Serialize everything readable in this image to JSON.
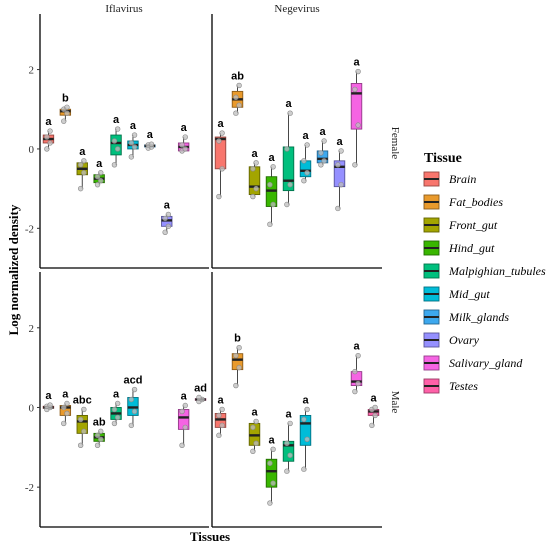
{
  "chart_data": {
    "type": "box",
    "xlabel": "Tissues",
    "ylabel": "Log normalized density",
    "ylim": [
      -3.0,
      3.4
    ],
    "yticks": [
      -2,
      0,
      2
    ],
    "columns": [
      "Iflavirus",
      "Negevirus"
    ],
    "rows": [
      "Female",
      "Male"
    ],
    "legend": {
      "title": "Tissue",
      "position": "right",
      "entries": [
        {
          "label": "Brain",
          "color": "#F8766D"
        },
        {
          "label": "Fat_bodies",
          "color": "#E99A2C"
        },
        {
          "label": "Front_gut",
          "color": "#A3A500"
        },
        {
          "label": "Hind_gut",
          "color": "#39B600"
        },
        {
          "label": "Malpighian_tubules",
          "color": "#00BF7D"
        },
        {
          "label": "Mid_gut",
          "color": "#00BCD8"
        },
        {
          "label": "Milk_glands",
          "color": "#3DA8EE"
        },
        {
          "label": "Ovary",
          "color": "#9590FF"
        },
        {
          "label": "Salivary_gland",
          "color": "#F564E3"
        },
        {
          "label": "Testes",
          "color": "#FF61A8"
        }
      ]
    },
    "panels": [
      {
        "column": "Iflavirus",
        "row": "Female",
        "boxes": [
          {
            "slot": 1,
            "tissue": "Brain",
            "min": 0.0,
            "q1": 0.15,
            "median": 0.25,
            "q3": 0.35,
            "max": 0.45,
            "points": [
              0.0,
              0.15,
              0.3,
              0.45
            ],
            "label": "a"
          },
          {
            "slot": 2,
            "tissue": "Fat_bodies",
            "min": 0.7,
            "q1": 0.85,
            "median": 0.95,
            "q3": 1.0,
            "max": 1.05,
            "points": [
              0.7,
              0.9,
              1.0,
              1.05
            ],
            "label": "b"
          },
          {
            "slot": 3,
            "tissue": "Front_gut",
            "min": -1.0,
            "q1": -0.65,
            "median": -0.5,
            "q3": -0.35,
            "max": -0.3,
            "points": [
              -1.0,
              -0.6,
              -0.4,
              -0.3
            ],
            "label": "a"
          },
          {
            "slot": 4,
            "tissue": "Hind_gut",
            "min": -0.9,
            "q1": -0.85,
            "median": -0.75,
            "q3": -0.65,
            "max": -0.6,
            "points": [
              -0.9,
              -0.8,
              -0.7,
              -0.6
            ],
            "label": "a"
          },
          {
            "slot": 5,
            "tissue": "Malpighian_tubules",
            "min": -0.4,
            "q1": -0.15,
            "median": 0.15,
            "q3": 0.35,
            "max": 0.5,
            "points": [
              -0.4,
              0.0,
              0.2,
              0.5
            ],
            "label": "a"
          },
          {
            "slot": 6,
            "tissue": "Mid_gut",
            "min": -0.2,
            "q1": 0.0,
            "median": 0.1,
            "q3": 0.2,
            "max": 0.35,
            "points": [
              -0.2,
              0.05,
              0.15,
              0.35
            ],
            "label": "a"
          },
          {
            "slot": 7,
            "tissue": "Milk_glands",
            "min": 0.02,
            "q1": 0.05,
            "median": 0.08,
            "q3": 0.1,
            "max": 0.12,
            "points": [
              0.02,
              0.05,
              0.1,
              0.12
            ],
            "label": "a"
          },
          {
            "slot": 8,
            "tissue": "Ovary",
            "min": -2.1,
            "q1": -1.95,
            "median": -1.8,
            "q3": -1.7,
            "max": -1.65,
            "points": [
              -2.1,
              -1.95,
              -1.75,
              -1.65
            ],
            "label": "a"
          },
          {
            "slot": 9,
            "tissue": "Salivary_gland",
            "min": -0.05,
            "q1": -0.05,
            "median": 0.05,
            "q3": 0.15,
            "max": 0.3,
            "points": [
              -0.05,
              0.0,
              0.1,
              0.3
            ],
            "label": "a"
          }
        ]
      },
      {
        "column": "Negevirus",
        "row": "Female",
        "boxes": [
          {
            "slot": 1,
            "tissue": "Brain",
            "min": -1.2,
            "q1": -0.5,
            "median": 0.25,
            "q3": 0.3,
            "max": 0.4,
            "points": [
              -1.2,
              -0.5,
              0.2,
              0.4
            ],
            "label": "a"
          },
          {
            "slot": 2,
            "tissue": "Fat_bodies",
            "min": 0.9,
            "q1": 1.05,
            "median": 1.25,
            "q3": 1.45,
            "max": 1.6,
            "points": [
              0.9,
              1.1,
              1.3,
              1.6
            ],
            "label": "ab"
          },
          {
            "slot": 3,
            "tissue": "Front_gut",
            "min": -1.2,
            "q1": -1.15,
            "median": -0.95,
            "q3": -0.45,
            "max": -0.35,
            "points": [
              -1.2,
              -1.0,
              -0.5,
              -0.35
            ],
            "label": "a"
          },
          {
            "slot": 4,
            "tissue": "Hind_gut",
            "min": -1.9,
            "q1": -1.45,
            "median": -1.05,
            "q3": -0.7,
            "max": -0.45,
            "points": [
              -1.9,
              -1.4,
              -0.9,
              -0.45
            ],
            "label": "a"
          },
          {
            "slot": 5,
            "tissue": "Malpighian_tubules",
            "min": -1.4,
            "q1": -1.05,
            "median": -0.8,
            "q3": 0.05,
            "max": 0.9,
            "points": [
              -1.4,
              -0.9,
              0.0,
              0.9
            ],
            "label": "a"
          },
          {
            "slot": 6,
            "tissue": "Mid_gut",
            "min": -0.8,
            "q1": -0.7,
            "median": -0.55,
            "q3": -0.3,
            "max": 0.1,
            "points": [
              -0.8,
              -0.6,
              -0.3,
              0.1
            ],
            "label": "a"
          },
          {
            "slot": 7,
            "tissue": "Milk_glands",
            "min": -0.4,
            "q1": -0.35,
            "median": -0.25,
            "q3": -0.05,
            "max": 0.2,
            "points": [
              -0.4,
              -0.3,
              -0.1,
              0.2
            ],
            "label": "a"
          },
          {
            "slot": 8,
            "tissue": "Ovary",
            "min": -1.5,
            "q1": -0.95,
            "median": -0.45,
            "q3": -0.3,
            "max": -0.05,
            "points": [
              -1.5,
              -0.9,
              -0.4,
              -0.05
            ],
            "label": "a"
          },
          {
            "slot": 9,
            "tissue": "Salivary_gland",
            "min": -0.4,
            "q1": 0.5,
            "median": 1.4,
            "q3": 1.65,
            "max": 1.95,
            "points": [
              -0.4,
              0.6,
              1.5,
              1.95
            ],
            "label": "a"
          }
        ]
      },
      {
        "column": "Iflavirus",
        "row": "Male",
        "boxes": [
          {
            "slot": 1,
            "tissue": "Brain",
            "min": -0.05,
            "q1": -0.02,
            "median": 0.0,
            "q3": 0.03,
            "max": 0.06,
            "points": [
              -0.05,
              0.0,
              0.03,
              0.06
            ],
            "label": "a"
          },
          {
            "slot": 2,
            "tissue": "Fat_bodies",
            "min": -0.4,
            "q1": -0.2,
            "median": 0.0,
            "q3": 0.05,
            "max": 0.1,
            "points": [
              -0.4,
              -0.15,
              0.0,
              0.1
            ],
            "label": "a"
          },
          {
            "slot": 3,
            "tissue": "Front_gut",
            "min": -0.95,
            "q1": -0.65,
            "median": -0.35,
            "q3": -0.2,
            "max": -0.05,
            "points": [
              -0.95,
              -0.6,
              -0.3,
              -0.05
            ],
            "label": "abc"
          },
          {
            "slot": 4,
            "tissue": "Hind_gut",
            "min": -0.95,
            "q1": -0.85,
            "median": -0.75,
            "q3": -0.65,
            "max": -0.6,
            "points": [
              -0.95,
              -0.8,
              -0.7,
              -0.6
            ],
            "label": "ab"
          },
          {
            "slot": 5,
            "tissue": "Malpighian_tubules",
            "min": -0.4,
            "q1": -0.3,
            "median": -0.15,
            "q3": 0.0,
            "max": 0.1,
            "points": [
              -0.4,
              -0.25,
              -0.05,
              0.1
            ],
            "label": "a"
          },
          {
            "slot": 6,
            "tissue": "Mid_gut",
            "min": -0.45,
            "q1": -0.2,
            "median": 0.0,
            "q3": 0.25,
            "max": 0.45,
            "points": [
              -0.45,
              -0.1,
              0.2,
              0.45
            ],
            "label": "acd"
          },
          {
            "slot": 9,
            "tissue": "Salivary_gland",
            "min": -0.95,
            "q1": -0.55,
            "median": -0.25,
            "q3": -0.05,
            "max": 0.05,
            "points": [
              -0.95,
              -0.5,
              -0.1,
              0.05
            ],
            "label": "a"
          },
          {
            "slot": 10,
            "tissue": "Testes",
            "min": 0.15,
            "q1": 0.18,
            "median": 0.2,
            "q3": 0.22,
            "max": 0.25,
            "points": [
              0.15,
              0.2,
              0.25
            ],
            "label": "ad"
          }
        ]
      },
      {
        "column": "Negevirus",
        "row": "Male",
        "boxes": [
          {
            "slot": 1,
            "tissue": "Brain",
            "min": -0.7,
            "q1": -0.5,
            "median": -0.3,
            "q3": -0.15,
            "max": -0.05,
            "points": [
              -0.7,
              -0.45,
              -0.2,
              -0.05
            ],
            "label": "a"
          },
          {
            "slot": 2,
            "tissue": "Fat_bodies",
            "min": 0.55,
            "q1": 0.95,
            "median": 1.2,
            "q3": 1.35,
            "max": 1.5,
            "points": [
              0.55,
              1.0,
              1.3,
              1.5
            ],
            "label": "b"
          },
          {
            "slot": 3,
            "tissue": "Front_gut",
            "min": -1.1,
            "q1": -0.95,
            "median": -0.7,
            "q3": -0.4,
            "max": -0.35,
            "points": [
              -1.1,
              -0.9,
              -0.5,
              -0.35
            ],
            "label": "a"
          },
          {
            "slot": 4,
            "tissue": "Hind_gut",
            "min": -2.4,
            "q1": -2.0,
            "median": -1.6,
            "q3": -1.3,
            "max": -1.05,
            "points": [
              -2.4,
              -1.9,
              -1.4,
              -1.05
            ],
            "label": "a"
          },
          {
            "slot": 5,
            "tissue": "Malpighian_tubules",
            "min": -1.6,
            "q1": -1.35,
            "median": -0.95,
            "q3": -0.85,
            "max": -0.4,
            "points": [
              -1.6,
              -1.2,
              -0.9,
              -0.4
            ],
            "label": "a"
          },
          {
            "slot": 6,
            "tissue": "Mid_gut",
            "min": -1.55,
            "q1": -0.95,
            "median": -0.4,
            "q3": -0.2,
            "max": -0.05,
            "points": [
              -1.55,
              -0.8,
              -0.3,
              -0.05
            ],
            "label": "a"
          },
          {
            "slot": 9,
            "tissue": "Salivary_gland",
            "min": 0.4,
            "q1": 0.55,
            "median": 0.65,
            "q3": 0.9,
            "max": 1.3,
            "points": [
              0.4,
              0.6,
              0.9,
              1.3
            ],
            "label": "a"
          },
          {
            "slot": 10,
            "tissue": "Testes",
            "min": -0.45,
            "q1": -0.2,
            "median": -0.1,
            "q3": -0.05,
            "max": 0.0,
            "points": [
              -0.45,
              -0.2,
              -0.05,
              0.0
            ],
            "label": "a"
          }
        ]
      }
    ]
  }
}
